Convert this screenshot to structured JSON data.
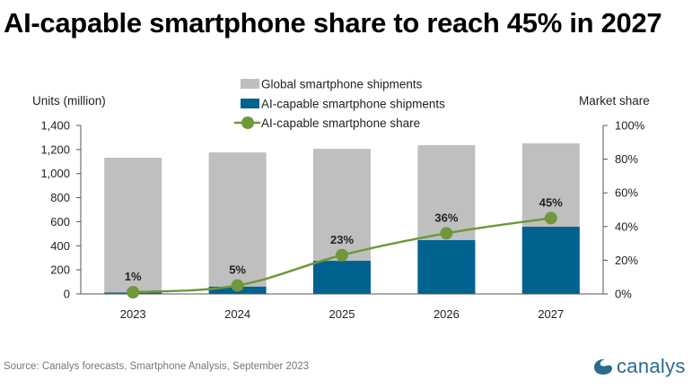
{
  "title": "AI-capable smartphone share to reach 45% in 2027",
  "source": "Source: Canalys forecasts, Smartphone Analysis, September 2023",
  "logo": {
    "text": "canalys",
    "icon": "canalys-swirl-icon",
    "color": "#2a6b8f"
  },
  "chart_data": {
    "type": "bar",
    "title": "AI-capable smartphone share to reach 45% in 2027",
    "categories": [
      "2023",
      "2024",
      "2025",
      "2026",
      "2027"
    ],
    "series": [
      {
        "name": "Global smartphone shipments",
        "kind": "bar",
        "axis": "left",
        "color": "#bfbfbf",
        "values": [
          1132,
          1176,
          1206,
          1236,
          1251
        ]
      },
      {
        "name": "AI-capable smartphone shipments",
        "kind": "bar",
        "axis": "left",
        "color": "#00628f",
        "values": [
          11,
          60,
          275,
          447,
          558
        ]
      },
      {
        "name": "AI-capable smartphone share",
        "kind": "line",
        "axis": "right",
        "color": "#70973a",
        "values": [
          1,
          5,
          23,
          36,
          45
        ],
        "labels": [
          "1%",
          "5%",
          "23%",
          "36%",
          "45%"
        ]
      }
    ],
    "left_axis": {
      "label": "Units (million)",
      "ylim": [
        0,
        1400
      ],
      "ticks": [
        0,
        200,
        400,
        600,
        800,
        1000,
        1200,
        1400
      ],
      "tick_labels": [
        "0",
        "200",
        "400",
        "600",
        "800",
        "1,000",
        "1,200",
        "1,400"
      ]
    },
    "right_axis": {
      "label": "Market share",
      "ylim": [
        0,
        100
      ],
      "ticks": [
        0,
        20,
        40,
        60,
        80,
        100
      ],
      "tick_labels": [
        "0%",
        "20%",
        "40%",
        "60%",
        "80%",
        "100%"
      ]
    },
    "xlabel": "",
    "grid": false,
    "legend": {
      "placement": "top-center",
      "entries": [
        "Global smartphone shipments",
        "AI-capable smartphone shipments",
        "AI-capable smartphone share"
      ]
    }
  }
}
